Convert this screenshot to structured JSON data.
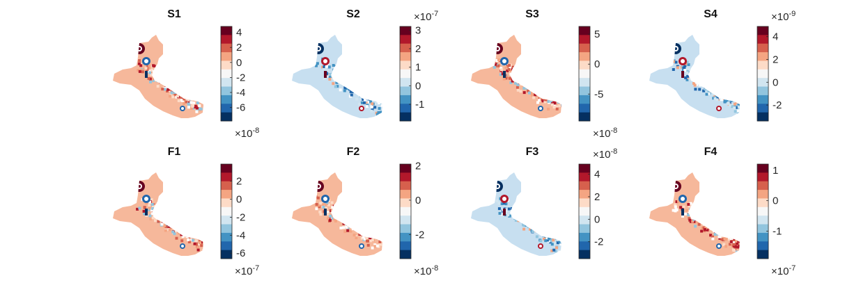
{
  "colormap": {
    "name": "RdBu (diverging)",
    "stops": [
      "#053061",
      "#2166ac",
      "#4393c3",
      "#92c5de",
      "#d1e5f0",
      "#f7f7f7",
      "#fddbc7",
      "#f4a582",
      "#d6604d",
      "#b2182b",
      "#67001f"
    ]
  },
  "panels": [
    {
      "title": "S1",
      "exponent": "×10",
      "exponent_power": "-8",
      "exponent_position": "bottom",
      "range": [
        -7.8,
        4.8
      ],
      "ticks": [
        "4",
        "2",
        "0",
        "-2",
        "-4",
        "-6"
      ],
      "tick_values": [
        4,
        2,
        0,
        -2,
        -4,
        -6
      ],
      "tone": "red"
    },
    {
      "title": "S2",
      "exponent": "×10",
      "exponent_power": "-7",
      "exponent_position": "top",
      "range": [
        -1.9,
        3.2
      ],
      "ticks": [
        "3",
        "2",
        "1",
        "0",
        "-1"
      ],
      "tick_values": [
        3,
        2,
        1,
        0,
        -1
      ],
      "tone": "blue"
    },
    {
      "title": "S3",
      "exponent": "×10",
      "exponent_power": "-8",
      "exponent_position": "bottom",
      "range": [
        -9.5,
        6.3
      ],
      "ticks": [
        "5",
        "0",
        "-5"
      ],
      "tick_values": [
        5,
        0,
        -5
      ],
      "tone": "red"
    },
    {
      "title": "S4",
      "exponent": "×10",
      "exponent_power": "-9",
      "exponent_position": "top",
      "range": [
        -3.4,
        4.9
      ],
      "ticks": [
        "4",
        "2",
        "0",
        "-2"
      ],
      "tick_values": [
        4,
        2,
        0,
        -2
      ],
      "tone": "blue"
    },
    {
      "title": "F1",
      "exponent": "×10",
      "exponent_power": "-7",
      "exponent_position": "bottom",
      "range": [
        -6.6,
        3.9
      ],
      "ticks": [
        "2",
        "0",
        "-2",
        "-4",
        "-6"
      ],
      "tick_values": [
        2,
        0,
        -2,
        -4,
        -6
      ],
      "tone": "red"
    },
    {
      "title": "F2",
      "exponent": "×10",
      "exponent_power": "-8",
      "exponent_position": "bottom",
      "range": [
        -3.4,
        2.1
      ],
      "ticks": [
        "2",
        "0",
        "-2"
      ],
      "tick_values": [
        2,
        0,
        -2
      ],
      "tone": "red"
    },
    {
      "title": "F3",
      "exponent": "×10",
      "exponent_power": "-8",
      "exponent_position": "top",
      "range": [
        -3.5,
        4.9
      ],
      "ticks": [
        "4",
        "2",
        "0",
        "-2"
      ],
      "tick_values": [
        4,
        2,
        0,
        -2
      ],
      "tone": "blue"
    },
    {
      "title": "F4",
      "exponent": "×10",
      "exponent_power": "-7",
      "exponent_position": "bottom",
      "range": [
        -1.9,
        1.2
      ],
      "ticks": [
        "1",
        "0",
        "-1"
      ],
      "tick_values": [
        1,
        0,
        -1
      ],
      "tone": "red"
    }
  ],
  "chart_data": {
    "type": "heatmap",
    "layout": "2 rows x 4 columns of spatial field maps, each with its own vertical colorbar",
    "colormap": "diverging blue-white-red",
    "maps": [
      {
        "title": "S1",
        "colorbar_range": [
          -7.8e-08,
          4.8e-08
        ],
        "colorbar_ticks": [
          4,
          2,
          0,
          -2,
          -4,
          -6
        ],
        "scale": "×10^-8"
      },
      {
        "title": "S2",
        "colorbar_range": [
          -1.9e-07,
          3.2e-07
        ],
        "colorbar_ticks": [
          3,
          2,
          1,
          0,
          -1
        ],
        "scale": "×10^-7"
      },
      {
        "title": "S3",
        "colorbar_range": [
          -9.5e-08,
          6.3e-08
        ],
        "colorbar_ticks": [
          5,
          0,
          -5
        ],
        "scale": "×10^-8"
      },
      {
        "title": "S4",
        "colorbar_range": [
          -3.4e-09,
          4.9e-09
        ],
        "colorbar_ticks": [
          4,
          2,
          0,
          -2
        ],
        "scale": "×10^-9"
      },
      {
        "title": "F1",
        "colorbar_range": [
          -6.6e-07,
          3.9e-07
        ],
        "colorbar_ticks": [
          2,
          0,
          -2,
          -4,
          -6
        ],
        "scale": "×10^-7"
      },
      {
        "title": "F2",
        "colorbar_range": [
          -3.4e-08,
          2.1e-08
        ],
        "colorbar_ticks": [
          2,
          0,
          -2
        ],
        "scale": "×10^-8"
      },
      {
        "title": "F3",
        "colorbar_range": [
          -3.5e-08,
          4.9e-08
        ],
        "colorbar_ticks": [
          4,
          2,
          0,
          -2
        ],
        "scale": "×10^-8"
      },
      {
        "title": "F4",
        "colorbar_range": [
          -1.9e-07,
          1.2e-07
        ],
        "colorbar_ticks": [
          1,
          0,
          -1
        ],
        "scale": "×10^-7"
      }
    ]
  }
}
